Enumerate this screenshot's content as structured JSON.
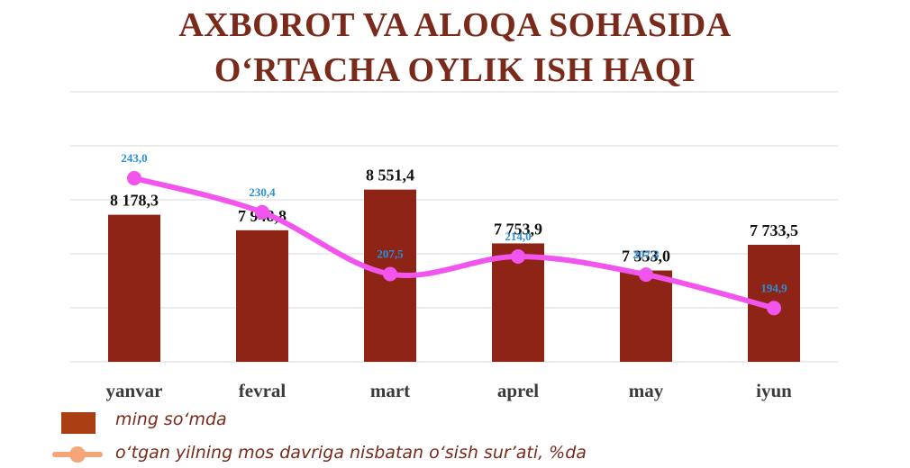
{
  "colors": {
    "title": "#7a2a1a",
    "bar": "#8e2416",
    "line": "#f255ee",
    "line_label": "#2a8ed8",
    "grid": "#d9d9d9",
    "legend_bar": "#a93f12",
    "legend_line": "#f4a679",
    "legend_text": "#7a2a1a"
  },
  "chart_data": {
    "type": "bar",
    "title": [
      "AXBOROT VA ALOQA SOHASIDA",
      "O‘RTACHA OYLIK ISH HAQI"
    ],
    "categories": [
      "yanvar",
      "fevral",
      "mart",
      "aprel",
      "may",
      "iyun"
    ],
    "bar_series": {
      "name": "ming so‘mda",
      "values": [
        8178.3,
        7948.8,
        8551.4,
        7753.9,
        7353.0,
        7733.5
      ],
      "labels": [
        "8 178,3",
        "7 948,8",
        "8 551,4",
        "7 753,9",
        "7 353,0",
        "7 733,5"
      ],
      "ylim": [
        6000,
        10000
      ]
    },
    "line_series": {
      "name": "o‘tgan yilning mos davriga nisbatan o‘sish sur’ati, %da",
      "values": [
        243.0,
        230.4,
        207.5,
        214.0,
        207.3,
        194.9
      ],
      "labels": [
        "243,0",
        "230,4",
        "207,5",
        "214,0",
        "207,3",
        "194,9"
      ],
      "ylim": [
        175,
        275
      ]
    },
    "grid": true,
    "legend": "bottom-left"
  }
}
